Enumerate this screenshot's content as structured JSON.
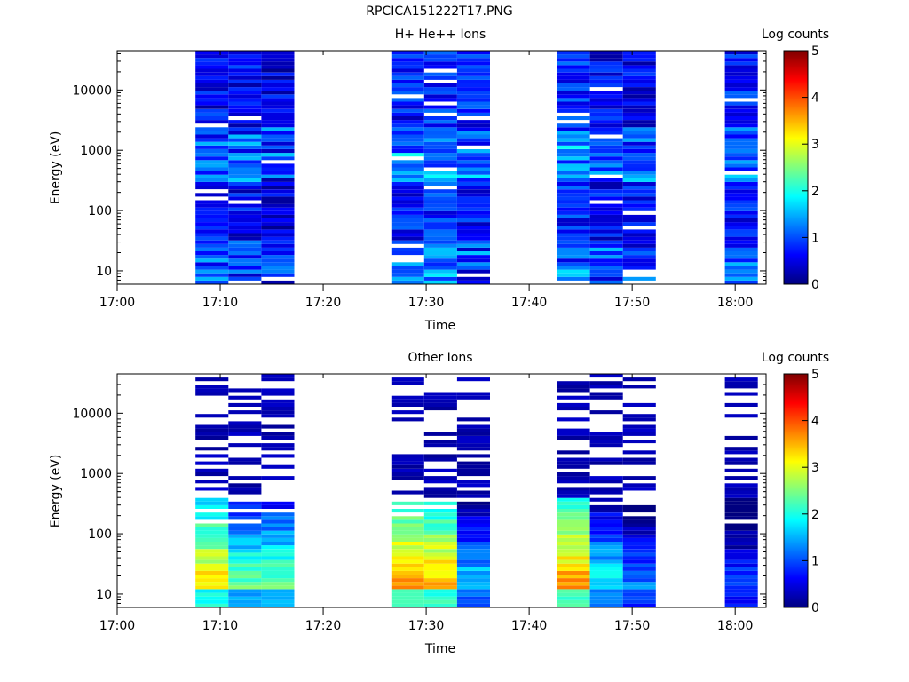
{
  "page_title": "RPCICA151222T17.PNG",
  "colorbar": {
    "label": "Log counts",
    "ticks": [
      "0",
      "1",
      "2",
      "3",
      "4",
      "5"
    ],
    "colormap": [
      "#00007f",
      "#0000ff",
      "#007fff",
      "#00ffff",
      "#7fff7f",
      "#ffff00",
      "#ff7f00",
      "#ff0000",
      "#7f0000"
    ]
  },
  "chart_data": [
    {
      "type": "heatmap",
      "title": "H+ He++ Ions",
      "xlabel": "Time",
      "ylabel": "Energy (eV)",
      "x_ticks": [
        "17:00",
        "17:10",
        "17:20",
        "17:30",
        "17:40",
        "17:50",
        "18:00"
      ],
      "y_ticks": [
        "10",
        "100",
        "1000",
        "10000"
      ],
      "y_scale": "log",
      "ylim": [
        6,
        45000
      ],
      "xlim": [
        "17:00",
        "18:03"
      ],
      "z_label": "Log counts",
      "zlim": [
        0,
        5
      ],
      "columns": [
        {
          "start": "17:07.6",
          "end": "17:10.8",
          "typical_log_counts": 0.6
        },
        {
          "start": "17:10.8",
          "end": "17:14.0",
          "typical_log_counts": 0.6
        },
        {
          "start": "17:14.0",
          "end": "17:17.2",
          "typical_log_counts": 0.5
        },
        {
          "start": "17:26.7",
          "end": "17:29.8",
          "typical_log_counts": 0.7
        },
        {
          "start": "17:29.8",
          "end": "17:33.0",
          "typical_log_counts": 0.8
        },
        {
          "start": "17:33.0",
          "end": "17:36.2",
          "typical_log_counts": 0.7
        },
        {
          "start": "17:42.7",
          "end": "17:45.9",
          "typical_log_counts": 0.8
        },
        {
          "start": "17:45.9",
          "end": "17:49.1",
          "typical_log_counts": 0.6
        },
        {
          "start": "17:49.1",
          "end": "17:52.3",
          "typical_log_counts": 0.6
        },
        {
          "start": "17:59.0",
          "end": "18:02.2",
          "typical_log_counts": 0.7
        }
      ]
    },
    {
      "type": "heatmap",
      "title": "Other Ions",
      "xlabel": "Time",
      "ylabel": "Energy (eV)",
      "x_ticks": [
        "17:00",
        "17:10",
        "17:20",
        "17:30",
        "17:40",
        "17:50",
        "18:00"
      ],
      "y_ticks": [
        "10",
        "100",
        "1000",
        "10000"
      ],
      "y_scale": "log",
      "ylim": [
        6,
        45000
      ],
      "xlim": [
        "17:00",
        "18:03"
      ],
      "z_label": "Log counts",
      "zlim": [
        0,
        5
      ],
      "columns": [
        {
          "start": "17:07.6",
          "end": "17:10.8",
          "peak_log_counts": 3.2
        },
        {
          "start": "17:10.8",
          "end": "17:14.0",
          "peak_log_counts": 2.3
        },
        {
          "start": "17:14.0",
          "end": "17:17.2",
          "peak_log_counts": 2.3
        },
        {
          "start": "17:26.7",
          "end": "17:29.8",
          "peak_log_counts": 3.6
        },
        {
          "start": "17:29.8",
          "end": "17:33.0",
          "peak_log_counts": 3.4
        },
        {
          "start": "17:33.0",
          "end": "17:36.2",
          "peak_log_counts": 1.6
        },
        {
          "start": "17:42.7",
          "end": "17:45.9",
          "peak_log_counts": 3.5
        },
        {
          "start": "17:45.9",
          "end": "17:49.1",
          "peak_log_counts": 1.8
        },
        {
          "start": "17:49.1",
          "end": "17:52.3",
          "peak_log_counts": 1.2
        },
        {
          "start": "17:59.0",
          "end": "18:02.2",
          "peak_log_counts": 1.0
        }
      ]
    }
  ]
}
